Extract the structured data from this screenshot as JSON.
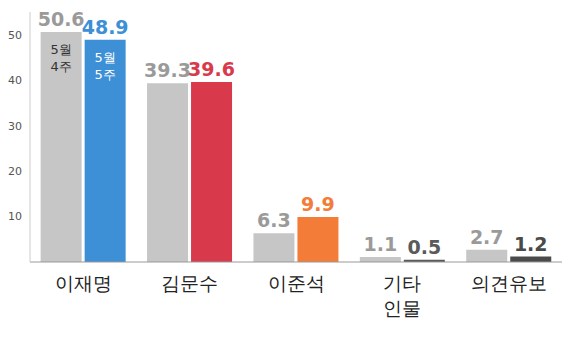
{
  "chart_data": {
    "type": "bar",
    "categories": [
      "이재명",
      "김문수",
      "이준석",
      "기타 인물",
      "의견유보"
    ],
    "series": [
      {
        "name": "5월 4주",
        "color": "#c6c6c6",
        "values": [
          50.6,
          39.3,
          6.3,
          1.1,
          2.7
        ]
      },
      {
        "name": "5월 5주",
        "colors": [
          "#3d8fd6",
          "#d83a4b",
          "#f27c38",
          "#5a5a5a",
          "#4a4a4a"
        ],
        "values": [
          48.9,
          39.6,
          9.9,
          0.5,
          1.2
        ]
      }
    ],
    "ylim": [
      0,
      55
    ],
    "yticks": [
      10,
      20,
      30,
      40,
      50
    ],
    "data_labels": true,
    "grid": false
  }
}
